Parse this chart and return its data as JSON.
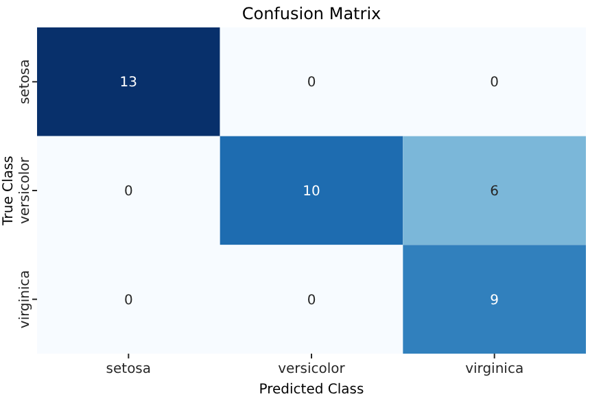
{
  "chart_data": {
    "type": "heatmap",
    "title": "Confusion Matrix",
    "xlabel": "Predicted Class",
    "ylabel": "True Class",
    "categories": [
      "setosa",
      "versicolor",
      "virginica"
    ],
    "y_categories": [
      "setosa",
      "versicolor",
      "virginica"
    ],
    "cells": [
      [
        13,
        0,
        0
      ],
      [
        0,
        10,
        6
      ],
      [
        0,
        0,
        9
      ]
    ],
    "data_labels": true
  }
}
